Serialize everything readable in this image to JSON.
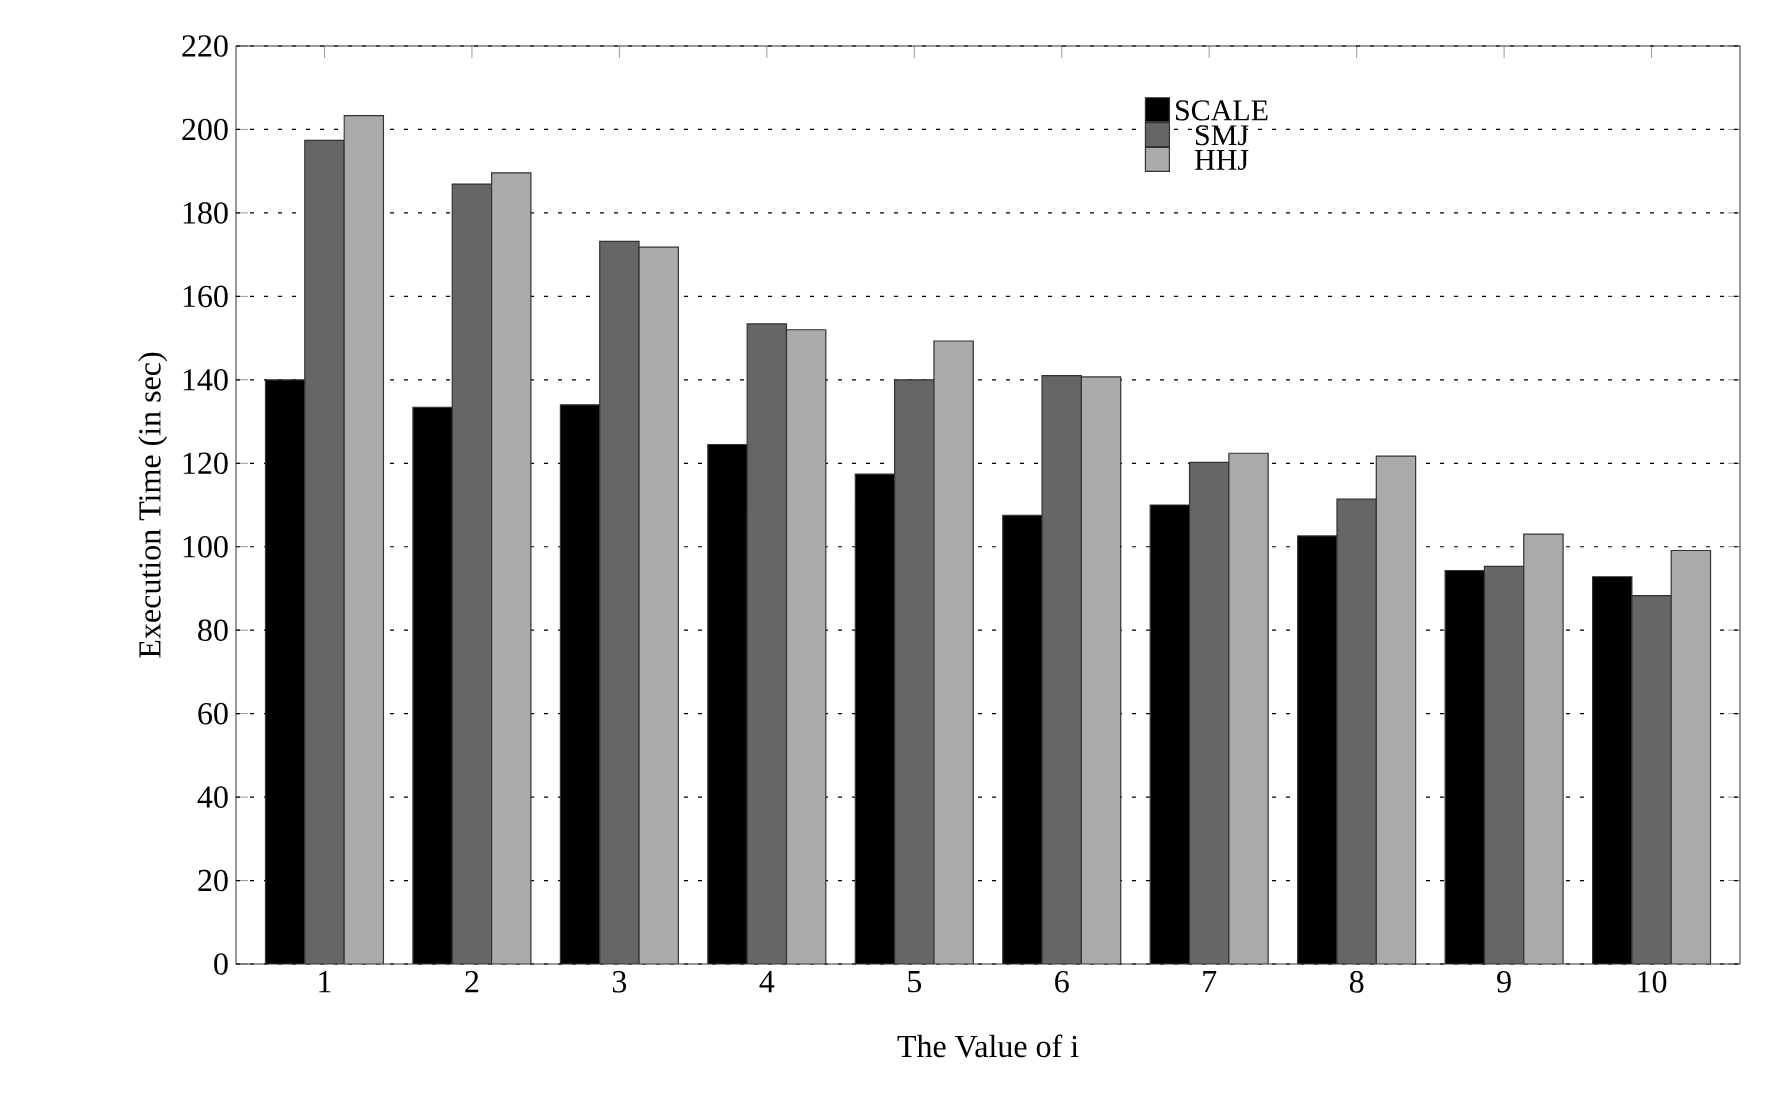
{
  "chart_data": {
    "type": "bar",
    "xlabel": "The Value of i",
    "ylabel": "Execution Time (in sec)",
    "categories": [
      "1",
      "2",
      "3",
      "4",
      "5",
      "6",
      "7",
      "8",
      "9",
      "10"
    ],
    "series": [
      {
        "name": "SCALE",
        "color": "#000000",
        "values": [
          140,
          133.4,
          134,
          124.5,
          117.4,
          107.5,
          110,
          102.6,
          94.3,
          92.8
        ]
      },
      {
        "name": "SMJ",
        "color": "#666666",
        "values": [
          197.4,
          186.9,
          173.2,
          153.4,
          140,
          141,
          120.2,
          111.4,
          95.3,
          88.3
        ]
      },
      {
        "name": "HHJ",
        "color": "#aaaaaa",
        "values": [
          203.3,
          189.6,
          171.8,
          152,
          149.3,
          140.7,
          122.4,
          121.7,
          103,
          99.1
        ]
      }
    ],
    "ylim": [
      0,
      220
    ],
    "yticks": [
      0,
      20,
      40,
      60,
      80,
      100,
      120,
      140,
      160,
      180,
      200,
      220
    ],
    "grid": "y",
    "legend": "top right"
  }
}
